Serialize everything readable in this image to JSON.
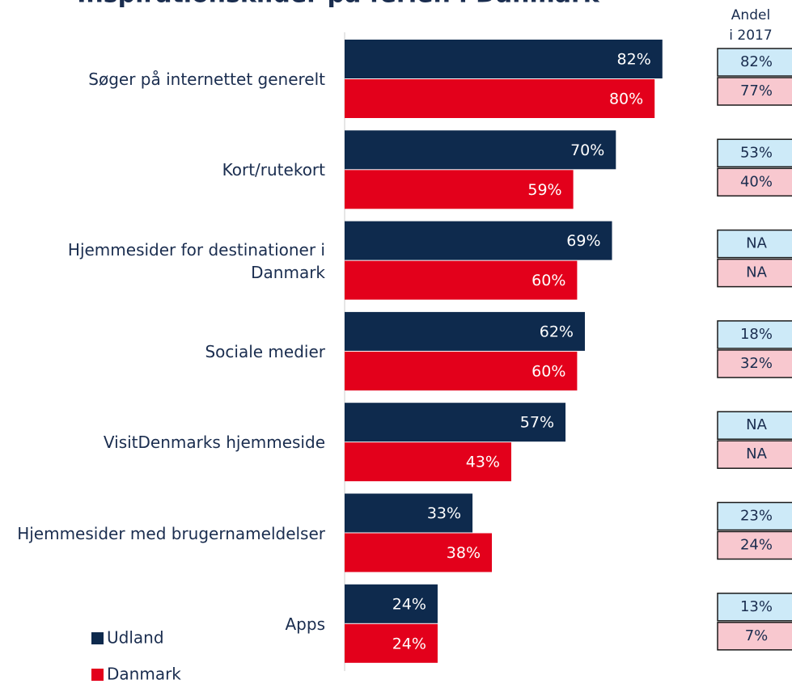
{
  "chart_data": {
    "type": "barh",
    "title": "Inspirationskilder på ferien i Danmark",
    "categories": [
      "Søger på internettet generelt",
      "Kort/rutekort",
      "Hjemmesider for destinationer i Danmark",
      "Sociale medier",
      "VisitDenmarks hjemmeside",
      "Hjemmesider med brugernameldelser",
      "Apps"
    ],
    "series": [
      {
        "name": "Udland",
        "color": "#0e2a4d",
        "values": [
          82,
          70,
          69,
          62,
          57,
          33,
          24
        ],
        "value_labels": [
          "82%",
          "70%",
          "69%",
          "62%",
          "57%",
          "33%",
          "24%"
        ]
      },
      {
        "name": "Danmark",
        "color": "#e3001b",
        "values": [
          80,
          59,
          60,
          60,
          43,
          38,
          24
        ],
        "value_labels": [
          "80%",
          "59%",
          "60%",
          "60%",
          "43%",
          "38%",
          "24%"
        ]
      }
    ],
    "xlim": [
      0,
      100
    ],
    "legend": "bottom-left",
    "andel_2017": {
      "header": [
        "Andel",
        "i 2017"
      ],
      "series": [
        {
          "color": "#cdeaf8",
          "values": [
            82,
            53,
            null,
            18,
            null,
            23,
            13
          ],
          "value_labels": [
            "82%",
            "53%",
            "NA",
            "18%",
            "NA",
            "23%",
            "13%"
          ]
        },
        {
          "color": "#f8c8cf",
          "values": [
            77,
            40,
            null,
            32,
            null,
            24,
            7
          ],
          "value_labels": [
            "77%",
            "40%",
            "NA",
            "32%",
            "NA",
            "24%",
            "7%"
          ]
        }
      ]
    }
  }
}
